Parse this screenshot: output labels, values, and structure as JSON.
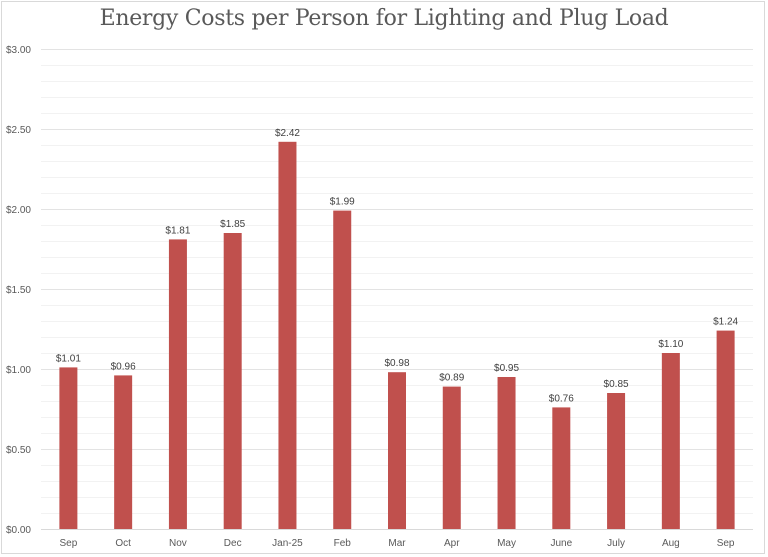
{
  "chart_data": {
    "type": "bar",
    "title": "Energy Costs per Person for Lighting and Plug Load",
    "xlabel": "",
    "ylabel": "",
    "categories": [
      "Sep",
      "Oct",
      "Nov",
      "Dec",
      "Jan-25",
      "Feb",
      "Mar",
      "Apr",
      "May",
      "June",
      "July",
      "Aug",
      "Sep"
    ],
    "values": [
      1.01,
      0.96,
      1.81,
      1.85,
      2.42,
      1.99,
      0.98,
      0.89,
      0.95,
      0.76,
      0.85,
      1.1,
      1.24
    ],
    "data_labels": [
      "$1.01",
      "$0.96",
      "$1.81",
      "$1.85",
      "$2.42",
      "$1.99",
      "$0.98",
      "$0.89",
      "$0.95",
      "$0.76",
      "$0.85",
      "$1.10",
      "$1.24"
    ],
    "ylim": [
      0,
      3
    ],
    "y_major_step": 0.5,
    "y_minor_step": 0.1,
    "y_tick_labels": [
      "$0.00",
      "$0.50",
      "$1.00",
      "$1.50",
      "$2.00",
      "$2.50",
      "$3.00"
    ],
    "grid": true,
    "legend": "none",
    "bar_color": "#c0504d"
  }
}
